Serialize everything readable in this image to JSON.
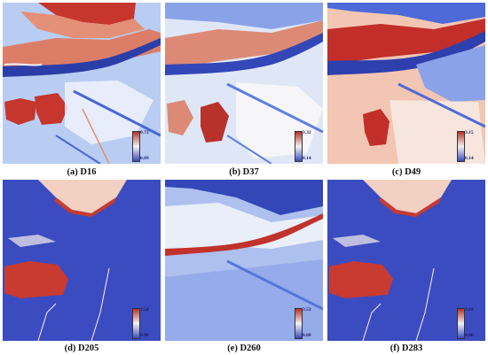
{
  "figure": {
    "panels": [
      {
        "caption": "(a) D16",
        "colorbar": {
          "max": "0.72",
          "min": "0.09",
          "colors": [
            "#b8322c",
            "#f2f2f2",
            "#3b4cc0"
          ]
        },
        "palette": {
          "bg": "#b9cdf2",
          "hot": "#c7362d",
          "warm": "#e48f77",
          "cool": "#4a66d6",
          "deep": "#2b3ea8",
          "light": "#eef2fb"
        }
      },
      {
        "caption": "(b) D37",
        "colorbar": {
          "max": "3.32",
          "min": "0.14",
          "colors": [
            "#b8322c",
            "#f2f2f2",
            "#3b4cc0"
          ]
        },
        "palette": {
          "bg": "#dfe7f7",
          "hot": "#b8322c",
          "warm": "#dc8a75",
          "cool": "#5f7fe0",
          "deep": "#3347b8",
          "light": "#f6f6f8"
        }
      },
      {
        "caption": "(c) D49",
        "colorbar": {
          "max": "3.15",
          "min": "0.14",
          "colors": [
            "#b8322c",
            "#f2f2f2",
            "#3b4cc0"
          ]
        },
        "palette": {
          "bg": "#f3c5b3",
          "hot": "#c22f2a",
          "warm": "#e99c83",
          "cool": "#4d6ad8",
          "deep": "#2e3fae",
          "light": "#f7e6de"
        }
      },
      {
        "caption": "(d) D205",
        "colorbar": {
          "max": "3.54",
          "min": "0.00",
          "colors": [
            "#b8322c",
            "#f2f2f2",
            "#3b4cc0"
          ]
        },
        "palette": {
          "bg": "#3b4cc0",
          "hot": "#c93a31",
          "warm": "#f2d0c2",
          "cool": "#4660d2",
          "deep": "#3446b8",
          "light": "#f6f1ee"
        }
      },
      {
        "caption": "(e) D260",
        "colorbar": {
          "max": "3.53",
          "min": "0.00",
          "colors": [
            "#b8322c",
            "#f2f2f2",
            "#3b4cc0"
          ]
        },
        "palette": {
          "bg": "#aec0ee",
          "hot": "#c0322b",
          "warm": "#e6a08e",
          "cool": "#5874dc",
          "deep": "#3347b8",
          "light": "#e9eef8"
        }
      },
      {
        "caption": "(f) D283",
        "colorbar": {
          "max": "3.69",
          "min": "0.00",
          "colors": [
            "#b8322c",
            "#f2f2f2",
            "#3b4cc0"
          ]
        },
        "palette": {
          "bg": "#3b4cc0",
          "hot": "#c93a31",
          "warm": "#f2d0c2",
          "cool": "#4660d2",
          "deep": "#3446b8",
          "light": "#f6f1ee"
        }
      }
    ]
  }
}
